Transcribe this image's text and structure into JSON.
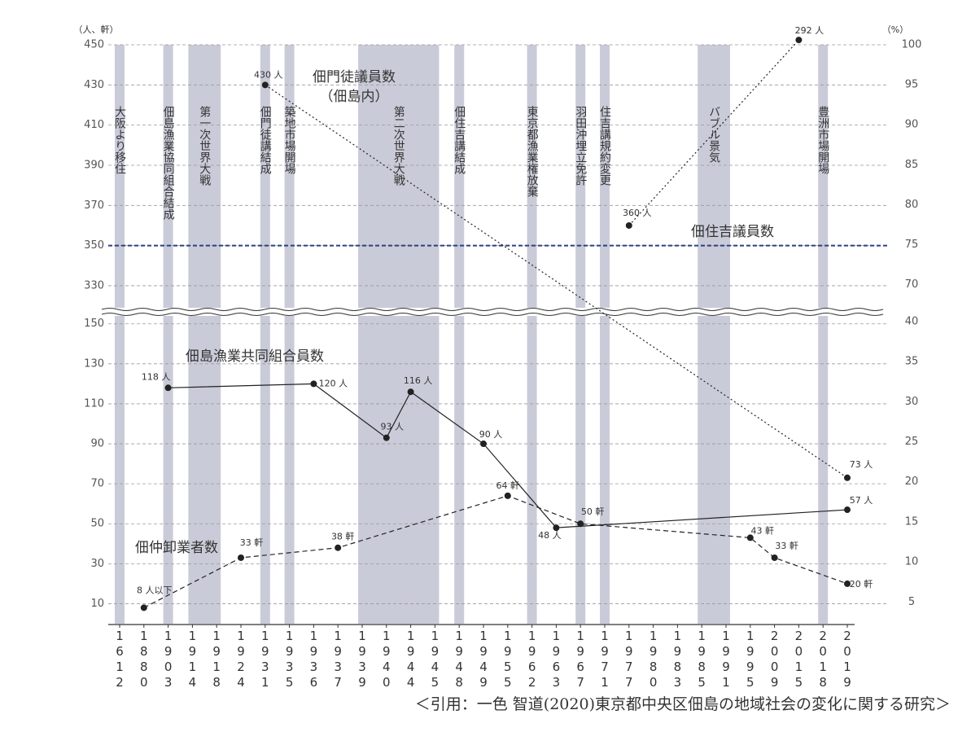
{
  "chart_data": {
    "type": "line",
    "source": "＜引用：一色 智道(2020)東京都中央区佃島の地域社会の変化に関する研究＞",
    "y_label": "（人、軒）",
    "y2_label": "（%）",
    "categories": [
      "1612",
      "1880",
      "1903",
      "1914",
      "1918",
      "1924",
      "1931",
      "1935",
      "1936",
      "1937",
      "1939",
      "1940",
      "1944",
      "1945",
      "1948",
      "1949",
      "1955",
      "1962",
      "1963",
      "1967",
      "1971",
      "1977",
      "1980",
      "1983",
      "1985",
      "1991",
      "1995",
      "2009",
      "2015",
      "2018",
      "2019"
    ],
    "ylim": [
      0,
      450
    ],
    "ybreak": [
      156,
      317
    ],
    "yticks": [
      10,
      30,
      50,
      70,
      90,
      110,
      130,
      150,
      330,
      350,
      370,
      390,
      410,
      430,
      450
    ],
    "y2lim": [
      2.3,
      100
    ],
    "y2break": [
      41.2,
      66.6
    ],
    "y2ticks": [
      5,
      10,
      15,
      20,
      25,
      30,
      35,
      40,
      70,
      75,
      80,
      85,
      90,
      95,
      100
    ],
    "grid": true,
    "reference_lines": [
      {
        "value": 350,
        "color": "#2e3f86"
      }
    ],
    "event_color": "#cacbd8",
    "events": [
      {
        "label": "大阪より移住",
        "start": "1612",
        "end": "1612"
      },
      {
        "label": "佃島漁業協同組合結成",
        "start": "1903",
        "end": "1903"
      },
      {
        "label": "第一次世界大戦",
        "start": "1914",
        "end": "1918"
      },
      {
        "label": "佃門徒講結成",
        "start": "1931",
        "end": "1931"
      },
      {
        "label": "築地市場開場",
        "start": "1935",
        "end": "1935"
      },
      {
        "label": "第二次世界大戦",
        "start": "1939",
        "end": "1945"
      },
      {
        "label": "佃住吉講結成",
        "start": "1948",
        "end": "1948"
      },
      {
        "label": "東京都漁業権放棄",
        "start": "1962",
        "end": "1962"
      },
      {
        "label": "羽田沖埋立免許",
        "start": "1967",
        "end": "1967"
      },
      {
        "label": "住吉講規約変更",
        "start": "1971",
        "end": "1971"
      },
      {
        "label": "バブル景気",
        "start": "1985",
        "end": "1991"
      },
      {
        "label": "豊洲市場開場",
        "start": "2018",
        "end": "2018"
      }
    ],
    "series": [
      {
        "name": "佃門徒議員数",
        "note": "（佃島内）",
        "color": "#222222",
        "line_style": "dotted",
        "x": [
          "1931",
          "2019"
        ],
        "values": [
          430,
          73
        ],
        "value_labels": [
          "430 人",
          "73 人"
        ]
      },
      {
        "name": "佃住吉議員数",
        "color": "#222222",
        "line_style": "dotted",
        "x": [
          "1977",
          "2015"
        ],
        "values": [
          360,
          292
        ],
        "value_labels": [
          "360 人",
          "292 人"
        ]
      },
      {
        "name": "佃島漁業共同組合員数",
        "color": "#222222",
        "line_style": "solid",
        "x": [
          "1903",
          "1936",
          "1940",
          "1944",
          "1949",
          "1963",
          "2019"
        ],
        "values": [
          118,
          120,
          93,
          116,
          90,
          48,
          57
        ],
        "value_labels": [
          "118 人",
          "120 人",
          "93 人",
          "116 人",
          "90 人",
          "48 人",
          "57 人"
        ]
      },
      {
        "name": "佃仲卸業者数",
        "color": "#222222",
        "line_style": "dashed",
        "x": [
          "1880",
          "1924",
          "1937",
          "1955",
          "1967",
          "1995",
          "2009",
          "2019"
        ],
        "values": [
          8,
          33,
          38,
          64,
          50,
          43,
          33,
          20
        ],
        "value_labels": [
          "8 人以下",
          "33 軒",
          "38 軒",
          "64 軒",
          "50 軒",
          "43 軒",
          "33 軒",
          "20 軒"
        ]
      }
    ]
  }
}
